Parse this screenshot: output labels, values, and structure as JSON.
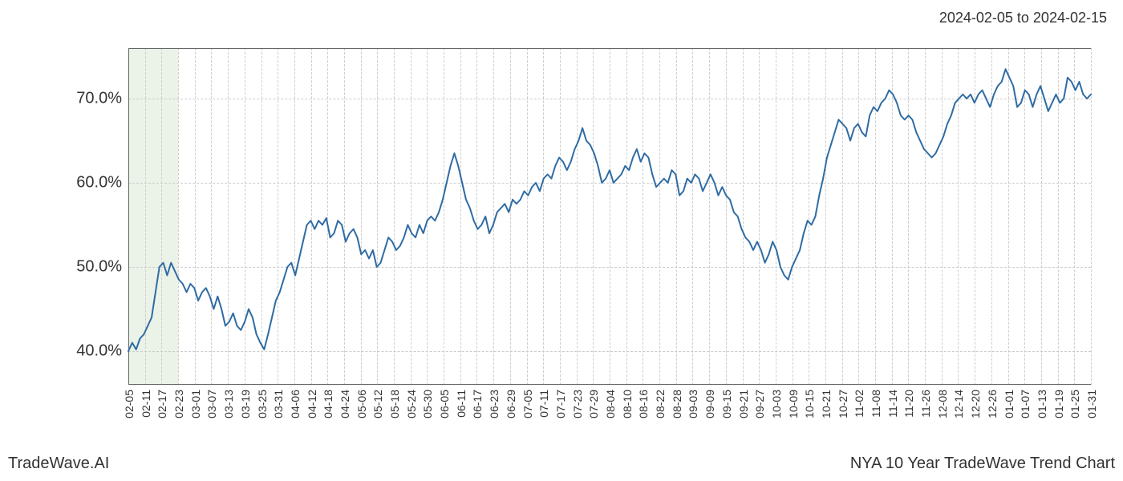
{
  "header": {
    "date_range": "2024-02-05 to 2024-02-15"
  },
  "footer": {
    "left": "TradeWave.AI",
    "right": "NYA 10 Year TradeWave Trend Chart"
  },
  "chart": {
    "type": "line",
    "background_color": "#ffffff",
    "grid_color": "#cccccc",
    "grid_style": "dashed",
    "border_color": "#666666",
    "line_color": "#2e6ba3",
    "line_width": 2,
    "highlight_band": {
      "color": "#dde9d8",
      "opacity": 0.6,
      "x_start_index": 0,
      "x_end_index": 3
    },
    "y_axis": {
      "min": 36,
      "max": 76,
      "ticks": [
        {
          "value": 40.0,
          "label": "40.0%"
        },
        {
          "value": 50.0,
          "label": "50.0%"
        },
        {
          "value": 60.0,
          "label": "60.0%"
        },
        {
          "value": 70.0,
          "label": "70.0%"
        }
      ],
      "tick_fontsize": 20,
      "tick_color": "#333333"
    },
    "x_axis": {
      "labels": [
        "02-05",
        "02-11",
        "02-17",
        "02-23",
        "03-01",
        "03-07",
        "03-13",
        "03-19",
        "03-25",
        "03-31",
        "04-06",
        "04-12",
        "04-18",
        "04-24",
        "05-06",
        "05-12",
        "05-18",
        "05-24",
        "05-30",
        "06-05",
        "06-11",
        "06-17",
        "06-23",
        "06-29",
        "07-05",
        "07-11",
        "07-17",
        "07-23",
        "07-29",
        "08-04",
        "08-10",
        "08-16",
        "08-22",
        "08-28",
        "09-03",
        "09-09",
        "09-15",
        "09-21",
        "09-27",
        "10-03",
        "10-09",
        "10-15",
        "10-21",
        "10-27",
        "11-02",
        "11-08",
        "11-14",
        "11-20",
        "11-26",
        "12-08",
        "12-14",
        "12-20",
        "12-26",
        "01-01",
        "01-07",
        "01-13",
        "01-19",
        "01-25",
        "01-31"
      ],
      "tick_fontsize": 14,
      "tick_color": "#333333",
      "rotation": 90
    },
    "series": {
      "values": [
        40.0,
        41.0,
        40.2,
        41.5,
        42.0,
        43.0,
        44.0,
        47.0,
        50.0,
        50.5,
        49.0,
        50.5,
        49.5,
        48.5,
        48.0,
        47.0,
        48.0,
        47.5,
        46.0,
        47.0,
        47.5,
        46.5,
        45.0,
        46.5,
        45.0,
        43.0,
        43.5,
        44.5,
        43.0,
        42.5,
        43.5,
        45.0,
        44.0,
        42.0,
        41.0,
        40.2,
        42.0,
        44.0,
        46.0,
        47.0,
        48.5,
        50.0,
        50.5,
        49.0,
        51.0,
        53.0,
        55.0,
        55.5,
        54.5,
        55.5,
        55.0,
        55.8,
        53.5,
        54.0,
        55.5,
        55.0,
        53.0,
        54.0,
        54.5,
        53.5,
        51.5,
        52.0,
        51.0,
        52.0,
        50.0,
        50.5,
        52.0,
        53.5,
        53.0,
        52.0,
        52.5,
        53.5,
        55.0,
        54.0,
        53.5,
        55.0,
        54.0,
        55.5,
        56.0,
        55.5,
        56.5,
        58.0,
        60.0,
        62.0,
        63.5,
        62.0,
        60.0,
        58.0,
        57.0,
        55.5,
        54.5,
        55.0,
        56.0,
        54.0,
        55.0,
        56.5,
        57.0,
        57.5,
        56.5,
        58.0,
        57.5,
        58.0,
        59.0,
        58.5,
        59.5,
        60.0,
        59.0,
        60.5,
        61.0,
        60.5,
        62.0,
        63.0,
        62.5,
        61.5,
        62.5,
        64.0,
        65.0,
        66.5,
        65.0,
        64.5,
        63.5,
        62.0,
        60.0,
        60.5,
        61.5,
        60.0,
        60.5,
        61.0,
        62.0,
        61.5,
        63.0,
        64.0,
        62.5,
        63.5,
        63.0,
        61.0,
        59.5,
        60.0,
        60.5,
        60.0,
        61.5,
        61.0,
        58.5,
        59.0,
        60.5,
        60.0,
        61.0,
        60.5,
        59.0,
        60.0,
        61.0,
        60.0,
        58.5,
        59.5,
        58.5,
        58.0,
        56.5,
        56.0,
        54.5,
        53.5,
        53.0,
        52.0,
        53.0,
        52.0,
        50.5,
        51.5,
        53.0,
        52.0,
        50.0,
        49.0,
        48.5,
        50.0,
        51.0,
        52.0,
        54.0,
        55.5,
        55.0,
        56.0,
        58.5,
        60.5,
        63.0,
        64.5,
        66.0,
        67.5,
        67.0,
        66.5,
        65.0,
        66.5,
        67.0,
        66.0,
        65.5,
        68.0,
        69.0,
        68.5,
        69.5,
        70.0,
        71.0,
        70.5,
        69.5,
        68.0,
        67.5,
        68.0,
        67.5,
        66.0,
        65.0,
        64.0,
        63.5,
        63.0,
        63.5,
        64.5,
        65.5,
        67.0,
        68.0,
        69.5,
        70.0,
        70.5,
        70.0,
        70.5,
        69.5,
        70.5,
        71.0,
        70.0,
        69.0,
        70.5,
        71.5,
        72.0,
        73.5,
        72.5,
        71.5,
        69.0,
        69.5,
        71.0,
        70.5,
        69.0,
        70.5,
        71.5,
        70.0,
        68.5,
        69.5,
        70.5,
        69.5,
        70.0,
        72.5,
        72.0,
        71.0,
        72.0,
        70.5,
        70.0,
        70.5
      ]
    }
  }
}
